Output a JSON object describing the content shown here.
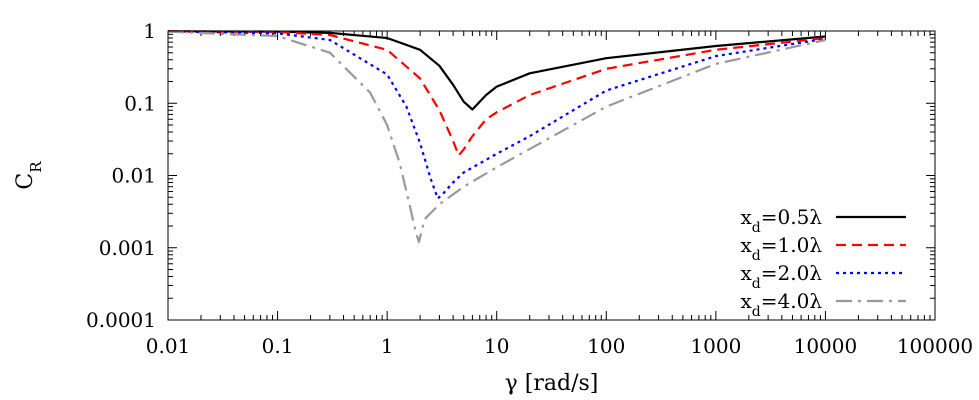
{
  "chart_data": {
    "type": "line",
    "title": "",
    "xlabel": "γ [rad/s]",
    "ylabel": "C",
    "ylabel_subscript": "R",
    "x_scale": "log",
    "y_scale": "log",
    "xlim": [
      0.01,
      100000
    ],
    "ylim": [
      0.0001,
      1
    ],
    "x_ticks": [
      "0.01",
      "0.1",
      "1",
      "10",
      "100",
      "1000",
      "10000",
      "100000"
    ],
    "y_ticks": [
      "0.0001",
      "0.001",
      "0.01",
      "0.1",
      "1"
    ],
    "grid": false,
    "legend_position": "bottom-right",
    "series": [
      {
        "name": "0.5λ",
        "legend_prefix": "x",
        "legend_subscript": "d",
        "color": "#000000",
        "dash": "solid",
        "x": [
          0.01,
          0.1,
          0.3,
          1,
          2,
          3,
          4,
          5,
          6,
          8,
          10,
          20,
          100,
          1000,
          10000
        ],
        "y": [
          0.99,
          0.98,
          0.94,
          0.8,
          0.55,
          0.33,
          0.18,
          0.105,
          0.082,
          0.13,
          0.17,
          0.26,
          0.42,
          0.62,
          0.84
        ]
      },
      {
        "name": "1.0λ",
        "legend_prefix": "x",
        "legend_subscript": "d",
        "color": "#ff0000",
        "dash": "dashed",
        "x": [
          0.01,
          0.1,
          0.3,
          1,
          2,
          3,
          4,
          4.5,
          5,
          6,
          8,
          10,
          20,
          100,
          1000,
          10000
        ],
        "y": [
          0.99,
          0.97,
          0.88,
          0.55,
          0.22,
          0.08,
          0.03,
          0.019,
          0.023,
          0.035,
          0.06,
          0.075,
          0.13,
          0.3,
          0.55,
          0.8
        ]
      },
      {
        "name": "2.0λ",
        "legend_prefix": "x",
        "legend_subscript": "d",
        "color": "#0000ff",
        "dash": "dotted",
        "x": [
          0.01,
          0.1,
          0.3,
          1,
          1.5,
          2,
          2.5,
          2.9,
          3.2,
          4,
          5,
          10,
          20,
          100,
          1000,
          10000
        ],
        "y": [
          0.99,
          0.93,
          0.75,
          0.25,
          0.09,
          0.028,
          0.009,
          0.0048,
          0.0055,
          0.008,
          0.011,
          0.02,
          0.035,
          0.15,
          0.45,
          0.78
        ]
      },
      {
        "name": "4.0λ",
        "legend_prefix": "x",
        "legend_subscript": "d",
        "color": "#999999",
        "dash": "dashdot",
        "x": [
          0.01,
          0.1,
          0.3,
          0.7,
          1,
          1.3,
          1.6,
          1.8,
          1.95,
          2.2,
          3,
          5,
          10,
          100,
          1000,
          10000
        ],
        "y": [
          0.98,
          0.85,
          0.5,
          0.14,
          0.05,
          0.015,
          0.004,
          0.0018,
          0.0012,
          0.0025,
          0.004,
          0.007,
          0.013,
          0.09,
          0.35,
          0.75
        ]
      }
    ]
  }
}
